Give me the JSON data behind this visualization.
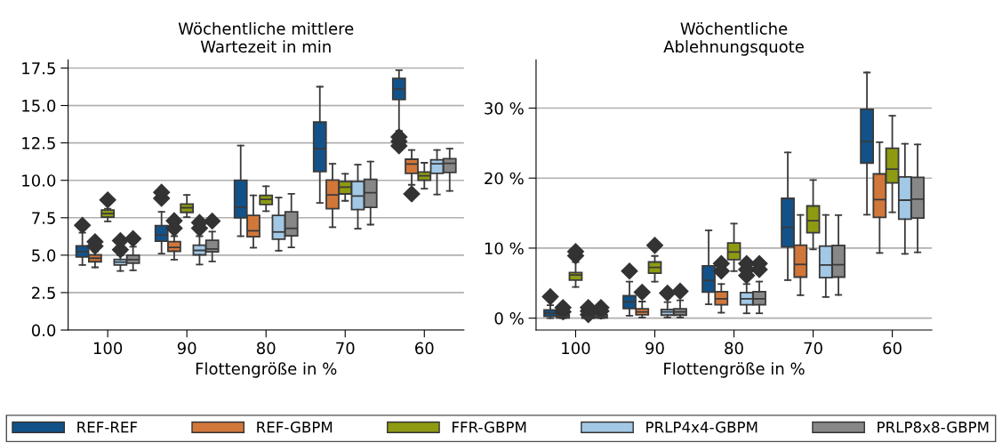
{
  "chart_data": [
    {
      "type": "box",
      "title": "Wöchentliche mittlere\nWartezeit in min",
      "xlabel": "Flottengröße in %",
      "categories": [
        "100",
        "90",
        "80",
        "70",
        "60"
      ],
      "ylim": [
        0,
        18.05
      ],
      "yticks": [
        {
          "value": 0,
          "label": "0.0"
        },
        {
          "value": 2.5,
          "label": "2.5"
        },
        {
          "value": 5,
          "label": "5.0"
        },
        {
          "value": 7.5,
          "label": "7.5"
        },
        {
          "value": 10,
          "label": "10.0"
        },
        {
          "value": 12.5,
          "label": "12.5"
        },
        {
          "value": 15,
          "label": "15.0"
        },
        {
          "value": 17.5,
          "label": "17.5"
        }
      ],
      "grid": "y",
      "legend": "bottom",
      "marker": "diamond",
      "series": [
        {
          "name": "REF-REF",
          "color": "#125289",
          "boxes": [
            {
              "low": 4.35,
              "q1": 4.88,
              "median": 5.24,
              "q3": 5.62,
              "high": 6.5,
              "outliers": [
                7.0
              ]
            },
            {
              "low": 5.1,
              "q1": 5.93,
              "median": 6.35,
              "q3": 6.98,
              "high": 7.9,
              "outliers": [
                8.8,
                9.2
              ]
            },
            {
              "low": 6.27,
              "q1": 7.5,
              "median": 8.21,
              "q3": 10.0,
              "high": 12.32
            },
            {
              "low": 8.49,
              "q1": 10.58,
              "median": 12.12,
              "q3": 13.89,
              "high": 16.25
            },
            {
              "low": 13.3,
              "q1": 15.4,
              "median": 16.09,
              "q3": 16.81,
              "high": 17.36,
              "outliers": [
                12.3,
                12.6,
                12.9
              ]
            }
          ]
        },
        {
          "name": "REF-GBPM",
          "color": "#d2773a",
          "boxes": [
            {
              "low": 4.19,
              "q1": 4.56,
              "median": 4.8,
              "q3": 5.02,
              "high": 5.26,
              "outliers": [
                5.6,
                5.9
              ]
            },
            {
              "low": 4.7,
              "q1": 5.26,
              "median": 5.52,
              "q3": 5.91,
              "high": 6.27,
              "outliers": [
                6.8,
                7.3
              ]
            },
            {
              "low": 5.5,
              "q1": 6.23,
              "median": 6.63,
              "q3": 7.66,
              "high": 9.0
            },
            {
              "low": 6.87,
              "q1": 8.1,
              "median": 9.03,
              "q3": 10.02,
              "high": 11.11
            },
            {
              "low": 9.7,
              "q1": 10.46,
              "median": 11.09,
              "q3": 11.41,
              "high": 12.02,
              "outliers": [
                9.09
              ]
            }
          ]
        },
        {
          "name": "FFR-GBPM",
          "color": "#8e9b12",
          "boxes": [
            {
              "low": 7.26,
              "q1": 7.54,
              "median": 7.78,
              "q3": 8.02,
              "high": 8.1,
              "outliers": [
                8.69
              ]
            },
            {
              "low": 7.54,
              "q1": 7.86,
              "median": 8.17,
              "q3": 8.41,
              "high": 9.03
            },
            {
              "low": 7.94,
              "q1": 8.39,
              "median": 8.73,
              "q3": 9.0,
              "high": 9.6
            },
            {
              "low": 8.63,
              "q1": 9.09,
              "median": 9.54,
              "q3": 9.92,
              "high": 10.44
            },
            {
              "low": 9.44,
              "q1": 10.0,
              "median": 10.3,
              "q3": 10.56,
              "high": 11.17
            }
          ]
        },
        {
          "name": "PRLP4x4-GBPM",
          "color": "#a2c8e6",
          "boxes": [
            {
              "low": 3.95,
              "q1": 4.34,
              "median": 4.54,
              "q3": 4.72,
              "high": 5.0,
              "outliers": [
                5.36,
                5.97
              ]
            },
            {
              "low": 4.37,
              "q1": 5.02,
              "median": 5.32,
              "q3": 5.67,
              "high": 6.27,
              "outliers": [
                6.8,
                7.18
              ]
            },
            {
              "low": 5.3,
              "q1": 6.07,
              "median": 6.55,
              "q3": 7.66,
              "high": 8.85
            },
            {
              "low": 6.77,
              "q1": 8.04,
              "median": 8.95,
              "q3": 9.92,
              "high": 11.05
            },
            {
              "low": 9.05,
              "q1": 10.46,
              "median": 11.11,
              "q3": 11.37,
              "high": 12.02
            }
          ]
        },
        {
          "name": "PRLP8x8-GBPM",
          "color": "#878787",
          "boxes": [
            {
              "low": 3.99,
              "q1": 4.46,
              "median": 4.7,
              "q3": 5.0,
              "high": 5.56,
              "outliers": [
                6.1
              ]
            },
            {
              "low": 4.58,
              "q1": 5.22,
              "median": 5.42,
              "q3": 5.99,
              "high": 6.57,
              "outliers": [
                7.28
              ]
            },
            {
              "low": 5.52,
              "q1": 6.29,
              "median": 6.79,
              "q3": 7.9,
              "high": 9.1
            },
            {
              "low": 7.04,
              "q1": 8.19,
              "median": 9.17,
              "q3": 10.06,
              "high": 11.25
            },
            {
              "low": 9.29,
              "q1": 10.52,
              "median": 11.13,
              "q3": 11.45,
              "high": 12.12
            }
          ]
        }
      ]
    },
    {
      "type": "box",
      "title": "Wöchentliche\nAblehnungsquote",
      "xlabel": "Flottengröße in %",
      "categories": [
        "100",
        "90",
        "80",
        "70",
        "60"
      ],
      "ylim": [
        -1.7,
        36.9
      ],
      "yticks": [
        {
          "value": 0,
          "label": "0 %"
        },
        {
          "value": 10,
          "label": "10 %"
        },
        {
          "value": 20,
          "label": "20 %"
        },
        {
          "value": 30,
          "label": "30 %"
        }
      ],
      "grid": "y",
      "marker": "diamond",
      "series": [
        {
          "color": "#125289",
          "boxes": [
            {
              "low": 0,
              "q1": 0.26,
              "median": 0.69,
              "q3": 1.16,
              "high": 1.85,
              "outliers": [
                3.06
              ]
            },
            {
              "low": 0.34,
              "q1": 1.38,
              "median": 2.33,
              "q3": 3.19,
              "high": 5.22,
              "outliers": [
                6.72
              ]
            },
            {
              "low": 1.98,
              "q1": 3.71,
              "median": 5.39,
              "q3": 7.46,
              "high": 12.54
            },
            {
              "low": 5.43,
              "q1": 10.17,
              "median": 12.97,
              "q3": 17.11,
              "high": 23.66
            },
            {
              "low": 14.78,
              "q1": 22.16,
              "median": 25.22,
              "q3": 29.83,
              "high": 35.09
            }
          ]
        },
        {
          "color": "#d2773a",
          "boxes": [
            {
              "low": 0,
              "q1": 0.04,
              "median": 0.2,
              "q3": 0.47,
              "high": 0.6,
              "outliers": [
                0.9,
                1.5
              ]
            },
            {
              "low": 0.09,
              "q1": 0.47,
              "median": 0.9,
              "q3": 1.34,
              "high": 2.37,
              "outliers": [
                3.7
              ]
            },
            {
              "low": 0.78,
              "q1": 1.9,
              "median": 2.76,
              "q3": 3.79,
              "high": 4.87,
              "outliers": [
                6.72,
                7.8
              ]
            },
            {
              "low": 3.28,
              "q1": 5.86,
              "median": 7.67,
              "q3": 10.43,
              "high": 14.74
            },
            {
              "low": 9.31,
              "q1": 14.4,
              "median": 16.94,
              "q3": 20.6,
              "high": 25.13
            }
          ]
        },
        {
          "color": "#8e9b12",
          "boxes": [
            {
              "low": 4.44,
              "q1": 5.43,
              "median": 6.16,
              "q3": 6.51,
              "high": 8.0,
              "outliers": [
                8.9,
                9.5
              ]
            },
            {
              "low": 5.22,
              "q1": 6.42,
              "median": 7.24,
              "q3": 8.02,
              "high": 8.88,
              "outliers": [
                10.39
              ]
            },
            {
              "low": 6.72,
              "q1": 8.36,
              "median": 9.44,
              "q3": 10.73,
              "high": 13.49
            },
            {
              "low": 9.83,
              "q1": 12.2,
              "median": 13.92,
              "q3": 16.03,
              "high": 19.74
            },
            {
              "low": 15.13,
              "q1": 19.31,
              "median": 21.29,
              "q3": 24.27,
              "high": 28.92
            }
          ]
        },
        {
          "color": "#a2c8e6",
          "boxes": [
            {
              "low": 0,
              "q1": 0,
              "median": 0.05,
              "q3": 0.1,
              "high": 0.4,
              "outliers": [
                0.5,
                1.0,
                1.5
              ]
            },
            {
              "low": 0.09,
              "q1": 0.43,
              "median": 0.9,
              "q3": 1.25,
              "high": 2.28,
              "outliers": [
                3.58
              ]
            },
            {
              "low": 0.69,
              "q1": 1.9,
              "median": 2.76,
              "q3": 3.66,
              "high": 4.87,
              "outliers": [
                6.08,
                6.94,
                7.8
              ]
            },
            {
              "low": 3.02,
              "q1": 5.78,
              "median": 7.59,
              "q3": 10.3,
              "high": 14.74
            },
            {
              "low": 9.18,
              "q1": 14.14,
              "median": 16.85,
              "q3": 20.17,
              "high": 24.91
            }
          ]
        },
        {
          "color": "#878787",
          "boxes": [
            {
              "low": 0,
              "q1": 0.04,
              "median": 0.2,
              "q3": 0.47,
              "high": 0.9,
              "outliers": [
                1.0,
                1.5
              ]
            },
            {
              "low": 0.09,
              "q1": 0.43,
              "median": 0.9,
              "q3": 1.34,
              "high": 2.54,
              "outliers": [
                3.84
              ]
            },
            {
              "low": 0.69,
              "q1": 1.9,
              "median": 2.76,
              "q3": 3.79,
              "high": 5.22,
              "outliers": [
                6.94,
                7.8
              ]
            },
            {
              "low": 3.32,
              "q1": 5.86,
              "median": 7.63,
              "q3": 10.39,
              "high": 14.7
            },
            {
              "low": 9.4,
              "q1": 14.3,
              "median": 17.0,
              "q3": 20.1,
              "high": 24.8
            }
          ]
        }
      ]
    }
  ]
}
